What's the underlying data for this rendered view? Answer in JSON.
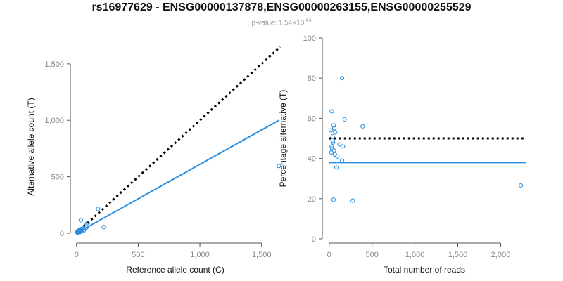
{
  "header": {
    "title": "rs16977629 - ENSG00000137878,ENSG00000263155,ENSG00000255529",
    "subtitle_prefix": "p-value: 1.54×10",
    "subtitle_exponent": "-64"
  },
  "colors": {
    "points": "#2b8fe0",
    "fit": "#2b8fe0",
    "reference": "#000000"
  },
  "chart_data": [
    {
      "type": "scatter",
      "xlabel": "Reference allele count (C)",
      "ylabel": "Alternative allele count (T)",
      "xlim": [
        -50,
        1650
      ],
      "ylim": [
        -50,
        1580
      ],
      "xticks": [
        0,
        500,
        1000,
        1500
      ],
      "xtick_labels": [
        "0",
        "500",
        "1,000",
        "1,500"
      ],
      "yticks": [
        0,
        500,
        1000,
        1500
      ],
      "ytick_labels": [
        "0",
        "500",
        "1,000",
        "1,500"
      ],
      "points": [
        {
          "x": 1640,
          "y": 595
        },
        {
          "x": 220,
          "y": 55
        },
        {
          "x": 175,
          "y": 215
        },
        {
          "x": 35,
          "y": 115
        },
        {
          "x": 90,
          "y": 90
        },
        {
          "x": 80,
          "y": 50
        },
        {
          "x": 70,
          "y": 65
        },
        {
          "x": 50,
          "y": 30
        },
        {
          "x": 40,
          "y": 25
        },
        {
          "x": 30,
          "y": 35
        },
        {
          "x": 25,
          "y": 20
        },
        {
          "x": 20,
          "y": 15
        },
        {
          "x": 15,
          "y": 12
        },
        {
          "x": 10,
          "y": 8
        },
        {
          "x": 12,
          "y": 18
        },
        {
          "x": 8,
          "y": 5
        },
        {
          "x": 5,
          "y": 10
        },
        {
          "x": 18,
          "y": 22
        },
        {
          "x": 28,
          "y": 10
        },
        {
          "x": 45,
          "y": 40
        },
        {
          "x": 60,
          "y": 25
        },
        {
          "x": 22,
          "y": 28
        },
        {
          "x": 35,
          "y": 15
        },
        {
          "x": 55,
          "y": 45
        }
      ],
      "lines": [
        {
          "name": "fit",
          "style": "solid",
          "x": [
            0,
            1640
          ],
          "y": [
            0,
            1000
          ]
        },
        {
          "name": "expected",
          "style": "dotted",
          "x": [
            0,
            1650
          ],
          "y": [
            0,
            1650
          ]
        }
      ]
    },
    {
      "type": "scatter",
      "xlabel": "Total number of reads",
      "ylabel": "Percentage alternative (T)",
      "xlim": [
        -80,
        2300
      ],
      "ylim": [
        0,
        100
      ],
      "xticks": [
        0,
        500,
        1000,
        1500,
        2000
      ],
      "xtick_labels": [
        "0",
        "500",
        "1,000",
        "1,500",
        "2,000"
      ],
      "yticks": [
        0,
        20,
        40,
        60,
        80,
        100
      ],
      "ytick_labels": [
        "0",
        "20",
        "40",
        "60",
        "80",
        "100"
      ],
      "points": [
        {
          "x": 2235,
          "y": 26.6
        },
        {
          "x": 150,
          "y": 80
        },
        {
          "x": 390,
          "y": 56
        },
        {
          "x": 275,
          "y": 19
        },
        {
          "x": 50,
          "y": 19.5
        },
        {
          "x": 180,
          "y": 59.5
        },
        {
          "x": 30,
          "y": 63.5
        },
        {
          "x": 160,
          "y": 46
        },
        {
          "x": 120,
          "y": 47
        },
        {
          "x": 150,
          "y": 39
        },
        {
          "x": 95,
          "y": 41
        },
        {
          "x": 85,
          "y": 35.5
        },
        {
          "x": 60,
          "y": 55
        },
        {
          "x": 70,
          "y": 53
        },
        {
          "x": 40,
          "y": 51
        },
        {
          "x": 45,
          "y": 48
        },
        {
          "x": 35,
          "y": 45
        },
        {
          "x": 25,
          "y": 43
        },
        {
          "x": 55,
          "y": 44
        },
        {
          "x": 65,
          "y": 42
        },
        {
          "x": 20,
          "y": 54
        },
        {
          "x": 50,
          "y": 56.5
        },
        {
          "x": 40,
          "y": 49
        },
        {
          "x": 30,
          "y": 46
        }
      ],
      "lines": [
        {
          "name": "fit",
          "style": "solid",
          "x": [
            0,
            2300
          ],
          "y": [
            38,
            38
          ]
        },
        {
          "name": "expected",
          "style": "dotted",
          "x": [
            0,
            2300
          ],
          "y": [
            50,
            50
          ]
        }
      ]
    }
  ]
}
